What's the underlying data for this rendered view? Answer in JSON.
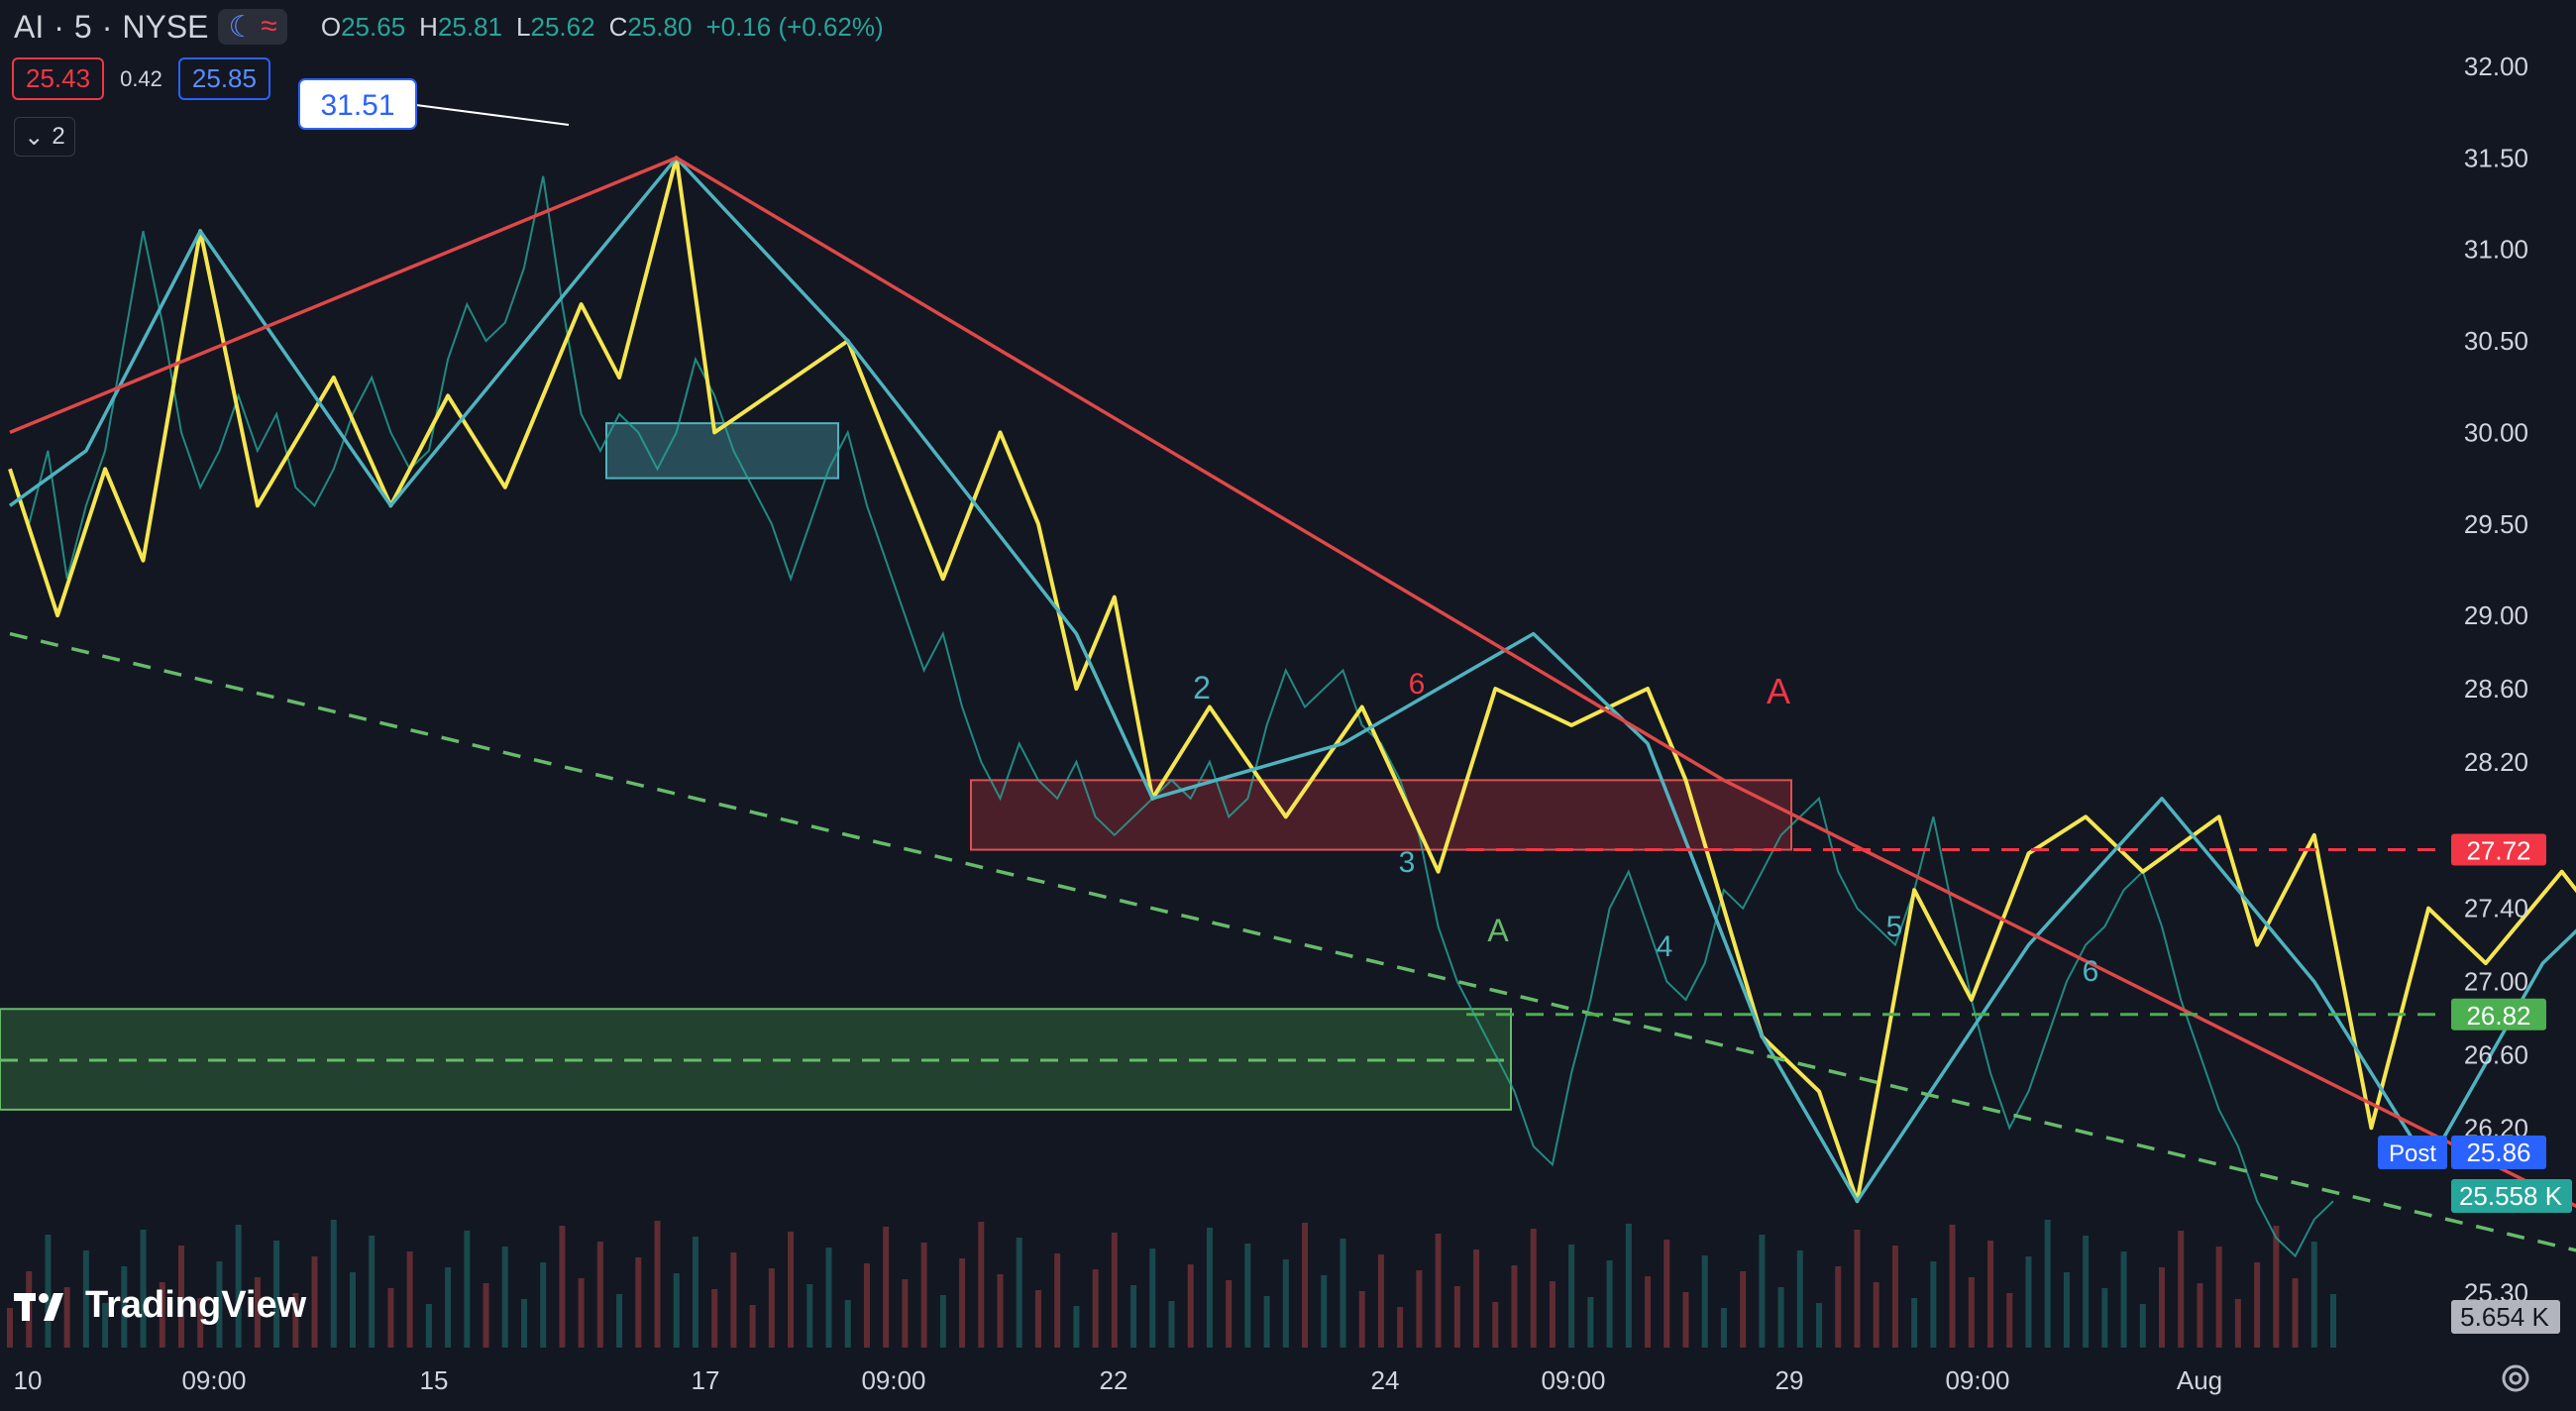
{
  "header": {
    "symbol": "AI",
    "interval": "5",
    "exchange": "NYSE",
    "ohlc": {
      "open_label": "O",
      "open": "25.65",
      "high_label": "H",
      "high": "25.81",
      "low_label": "L",
      "low": "25.62",
      "close_label": "C",
      "close": "25.80",
      "change": "+0.16 (+0.62%)"
    },
    "bid": "25.43",
    "spread": "0.42",
    "ask": "25.85",
    "indicators_count": "2"
  },
  "branding": {
    "logo_text": "TradingView"
  },
  "colors": {
    "background": "#131722",
    "up": "#26a69a",
    "down": "#ef5350",
    "zigzag_yellow": "#f5e650",
    "zigzag_teal": "#4fb3bf",
    "trend_red": "#e04848",
    "green_dashed": "#66bb6a",
    "grid": "#1e222d"
  },
  "chart_data": {
    "type": "line",
    "x_tick_labels": [
      "10",
      "09:00",
      "15",
      "17",
      "09:00",
      "22",
      "24",
      "09:00",
      "29",
      "09:00",
      "Aug"
    ],
    "y_tick_labels": [
      "32.00",
      "31.50",
      "31.00",
      "30.50",
      "30.00",
      "29.50",
      "29.00",
      "28.60",
      "28.20",
      "27.40",
      "27.00",
      "26.60",
      "26.20",
      "25.30"
    ],
    "ylim": [
      25.0,
      32.2
    ],
    "grid": false,
    "price_series": [
      29.8,
      29.5,
      29.9,
      29.2,
      29.6,
      29.9,
      30.5,
      31.1,
      30.6,
      30.0,
      29.7,
      29.9,
      30.2,
      29.9,
      30.1,
      29.7,
      29.6,
      29.8,
      30.1,
      30.3,
      30.0,
      29.8,
      29.9,
      30.4,
      30.7,
      30.5,
      30.6,
      30.9,
      31.4,
      30.7,
      30.1,
      29.9,
      30.1,
      30.0,
      29.8,
      30.0,
      30.4,
      30.2,
      29.9,
      29.7,
      29.5,
      29.2,
      29.5,
      29.8,
      30.0,
      29.6,
      29.3,
      29.0,
      28.7,
      28.9,
      28.5,
      28.2,
      28.0,
      28.3,
      28.1,
      28.0,
      28.2,
      27.9,
      27.8,
      27.9,
      28.0,
      28.1,
      28.0,
      28.2,
      27.9,
      28.0,
      28.4,
      28.7,
      28.5,
      28.6,
      28.7,
      28.4,
      28.3,
      28.1,
      27.8,
      27.3,
      27.0,
      26.8,
      26.6,
      26.4,
      26.1,
      26.0,
      26.5,
      26.9,
      27.4,
      27.6,
      27.3,
      27.0,
      26.9,
      27.1,
      27.5,
      27.4,
      27.6,
      27.8,
      27.9,
      28.0,
      27.6,
      27.4,
      27.3,
      27.2,
      27.5,
      27.9,
      27.4,
      26.9,
      26.5,
      26.2,
      26.4,
      26.7,
      27.0,
      27.2,
      27.3,
      27.5,
      27.6,
      27.3,
      26.9,
      26.6,
      26.3,
      26.1,
      25.8,
      25.6,
      25.5,
      25.7,
      25.8
    ],
    "series": [
      {
        "name": "",
        "role": "zigzag-yellow",
        "values": [
          [
            0,
            29.8
          ],
          [
            2.5,
            29.0
          ],
          [
            5,
            29.8
          ],
          [
            7,
            29.3
          ],
          [
            10,
            31.1
          ],
          [
            13,
            29.6
          ],
          [
            17,
            30.3
          ],
          [
            20,
            29.6
          ],
          [
            23,
            30.2
          ],
          [
            26,
            29.7
          ],
          [
            30,
            30.7
          ],
          [
            32,
            30.3
          ],
          [
            35,
            31.5
          ],
          [
            37,
            30.0
          ],
          [
            44,
            30.5
          ],
          [
            49,
            29.2
          ],
          [
            52,
            30.0
          ],
          [
            54,
            29.5
          ],
          [
            56,
            28.6
          ],
          [
            58,
            29.1
          ],
          [
            60,
            28.0
          ],
          [
            63,
            28.5
          ],
          [
            67,
            27.9
          ],
          [
            71,
            28.5
          ],
          [
            75,
            27.6
          ],
          [
            78,
            28.6
          ],
          [
            82,
            28.4
          ],
          [
            86,
            28.6
          ],
          [
            88,
            28.1
          ],
          [
            92,
            26.7
          ],
          [
            95,
            26.4
          ],
          [
            97,
            25.8
          ],
          [
            100,
            27.5
          ],
          [
            103,
            26.9
          ],
          [
            106,
            27.7
          ],
          [
            109,
            27.9
          ],
          [
            112,
            27.6
          ],
          [
            116,
            27.9
          ],
          [
            118,
            27.2
          ],
          [
            121,
            27.8
          ],
          [
            124,
            26.2
          ],
          [
            127,
            27.4
          ],
          [
            130,
            27.1
          ],
          [
            134,
            27.6
          ],
          [
            137,
            27.2
          ],
          [
            140,
            25.6
          ],
          [
            142,
            25.8
          ]
        ]
      },
      {
        "name": "",
        "role": "zigzag-teal",
        "values": [
          [
            0,
            29.6
          ],
          [
            4,
            29.9
          ],
          [
            10,
            31.1
          ],
          [
            20,
            29.6
          ],
          [
            35,
            31.5
          ],
          [
            44,
            30.5
          ],
          [
            56,
            28.9
          ],
          [
            60,
            28.0
          ],
          [
            70,
            28.3
          ],
          [
            80,
            28.9
          ],
          [
            86,
            28.3
          ],
          [
            92,
            26.7
          ],
          [
            97,
            25.8
          ],
          [
            106,
            27.2
          ],
          [
            113,
            28.0
          ],
          [
            121,
            27.0
          ],
          [
            127,
            26.0
          ],
          [
            133,
            27.1
          ],
          [
            137,
            27.5
          ],
          [
            142,
            25.8
          ]
        ]
      },
      {
        "name": "",
        "role": "trendline-red",
        "values": [
          [
            0,
            30.0
          ],
          [
            35,
            31.5
          ],
          [
            90,
            28.1
          ],
          [
            140,
            25.5
          ]
        ]
      },
      {
        "name": "",
        "role": "trendline-green-dashed",
        "values": [
          [
            0,
            28.9
          ],
          [
            140,
            25.4
          ]
        ]
      }
    ],
    "horizontal_levels": [
      {
        "label": "27.72",
        "value": 27.72,
        "style": "dashed",
        "color": "#f23645"
      },
      {
        "label": "26.82",
        "value": 26.82,
        "style": "dashed",
        "color": "#4caf50"
      }
    ],
    "zones": [
      {
        "name": "",
        "color": "red",
        "from_price": 27.72,
        "to_price": 28.1
      },
      {
        "name": "",
        "color": "green",
        "from_price": 26.3,
        "to_price": 26.85
      },
      {
        "name": "",
        "color": "teal",
        "from_price": 29.75,
        "to_price": 30.05
      }
    ],
    "annotations": [
      {
        "text": "31.51",
        "kind": "callout"
      },
      {
        "text": "A",
        "color": "#f23645"
      },
      {
        "text": "A",
        "color": "#66bb6a"
      },
      {
        "text": "6",
        "color": "#f23645"
      },
      {
        "text": "2",
        "color": "#4fb3bf"
      },
      {
        "text": "3",
        "color": "#4fb3bf"
      },
      {
        "text": "4",
        "color": "#4fb3bf"
      },
      {
        "text": "5",
        "color": "#4fb3bf"
      },
      {
        "text": "6",
        "color": "#4fb3bf"
      }
    ],
    "price_labels": {
      "post_label": "Post",
      "post_value": "25.86",
      "last_value": "25.558 K",
      "volume_value": "5.654 K"
    }
  }
}
